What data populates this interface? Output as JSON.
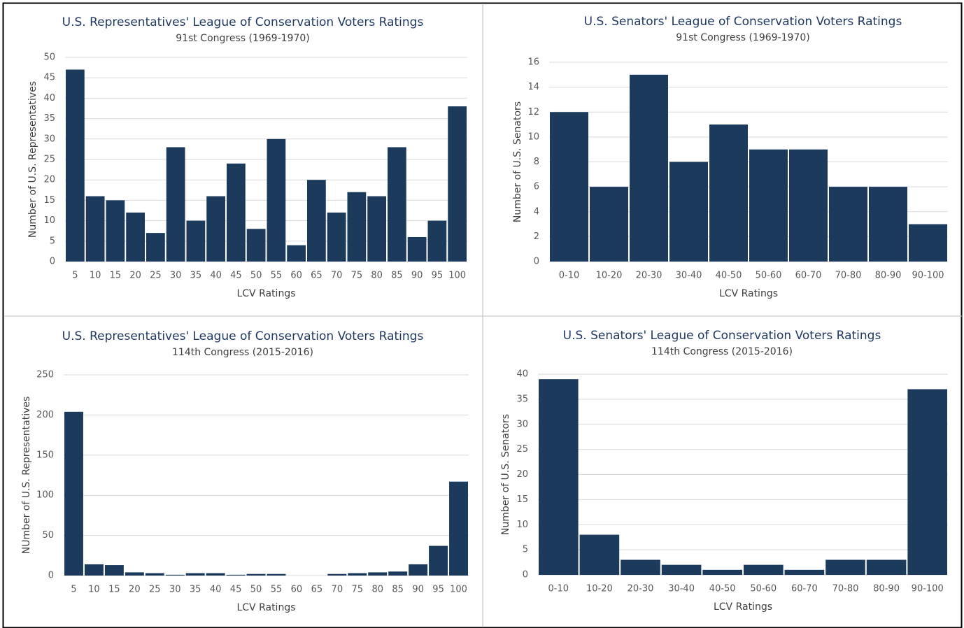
{
  "chart_data": [
    {
      "type": "bar",
      "title": "U.S. Representatives' League of Conservation Voters Ratings",
      "subtitle": "91st Congress (1969-1970)",
      "x_label": "LCV Ratings",
      "y_label": "Number of U.S. Representatives",
      "categories": [
        "5",
        "10",
        "15",
        "20",
        "25",
        "30",
        "35",
        "40",
        "45",
        "50",
        "55",
        "60",
        "65",
        "70",
        "75",
        "80",
        "85",
        "90",
        "95",
        "100"
      ],
      "values": [
        47,
        16,
        15,
        12,
        7,
        28,
        10,
        16,
        24,
        8,
        30,
        4,
        20,
        12,
        17,
        16,
        28,
        6,
        10,
        38
      ],
      "color": "#1b3a5c",
      "ylim": [
        0,
        50
      ],
      "yticks": [
        0,
        5,
        10,
        15,
        20,
        25,
        30,
        35,
        40,
        45,
        50
      ],
      "grid": true
    },
    {
      "type": "bar",
      "title": "U.S. Senators' League of Conservation Voters Ratings",
      "subtitle": "91st Congress (1969-1970)",
      "x_label": "LCV Ratings",
      "y_label": "Number of U.S. Senators",
      "categories": [
        "0-10",
        "10-20",
        "20-30",
        "30-40",
        "40-50",
        "50-60",
        "60-70",
        "70-80",
        "80-90",
        "90-100"
      ],
      "values": [
        12,
        6,
        15,
        8,
        11,
        9,
        9,
        6,
        6,
        3
      ],
      "color": "#1b3a5c",
      "ylim": [
        0,
        16
      ],
      "yticks": [
        0,
        2,
        4,
        6,
        8,
        10,
        12,
        14,
        16
      ],
      "grid": true
    },
    {
      "type": "bar",
      "title": "U.S. Representatives' League of Conservation Voters Ratings",
      "subtitle": "114th Congress (2015-2016)",
      "x_label": "LCV Ratings",
      "y_label": "NUmber of U.S. Representatives",
      "categories": [
        "5",
        "10",
        "15",
        "20",
        "25",
        "30",
        "35",
        "40",
        "45",
        "50",
        "55",
        "60",
        "65",
        "70",
        "75",
        "80",
        "85",
        "90",
        "95",
        "100"
      ],
      "values": [
        204,
        14,
        13,
        4,
        3,
        1,
        3,
        3,
        1,
        2,
        2,
        0,
        0,
        2,
        3,
        4,
        5,
        14,
        37,
        117
      ],
      "color": "#1b3a5c",
      "ylim": [
        0,
        250
      ],
      "yticks": [
        0,
        50,
        100,
        150,
        200,
        250
      ],
      "grid": true
    },
    {
      "type": "bar",
      "title": "U.S. Senators' League of Conservation Voters Ratings",
      "subtitle": "114th Congress (2015-2016)",
      "x_label": "LCV Ratings",
      "y_label": "Number of U.S. Senators",
      "categories": [
        "0-10",
        "10-20",
        "20-30",
        "30-40",
        "40-50",
        "50-60",
        "60-70",
        "70-80",
        "80-90",
        "90-100"
      ],
      "values": [
        39,
        8,
        3,
        2,
        1,
        2,
        1,
        3,
        3,
        37
      ],
      "color": "#1b3a5c",
      "ylim": [
        0,
        40
      ],
      "yticks": [
        0,
        5,
        10,
        15,
        20,
        25,
        30,
        35,
        40
      ],
      "grid": true
    }
  ]
}
